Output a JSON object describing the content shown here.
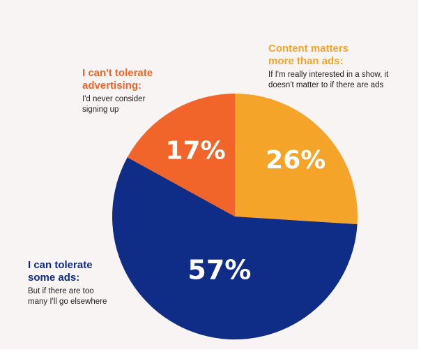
{
  "chart_data": {
    "type": "pie",
    "slices": [
      {
        "value": 26,
        "label": "26%",
        "color": "#f5a42a",
        "heading": [
          "Content matters",
          "more than ads:"
        ],
        "description": [
          "If I'm really interested in a show, it",
          "doesn't matter to if there are ads"
        ]
      },
      {
        "value": 57,
        "label": "57%",
        "color": "#0f2d87",
        "heading": [
          "I can tolerate",
          "some ads:"
        ],
        "description": [
          "But if there are too",
          "many I'll go elsewhere"
        ]
      },
      {
        "value": 17,
        "label": "17%",
        "color": "#f2652a",
        "heading": [
          "I can't tolerate",
          "advertising:"
        ],
        "description": [
          "I'd never consider",
          "signing up"
        ]
      }
    ]
  }
}
